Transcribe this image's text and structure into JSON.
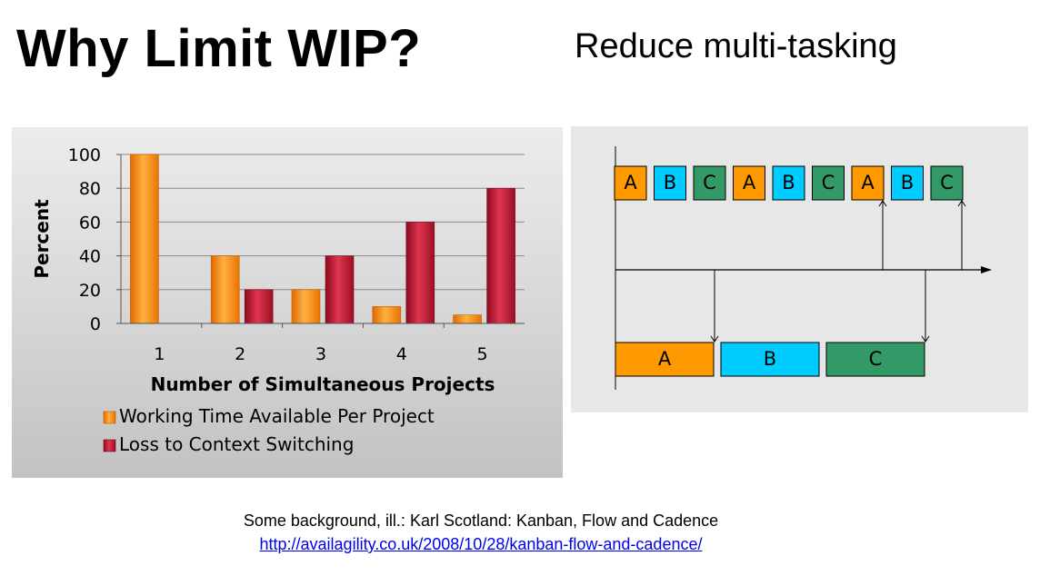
{
  "slide": {
    "title": "Why Limit WIP?",
    "subtitle": "Reduce multi-tasking",
    "footer_text": "Some background, ill.: Karl Scotland: Kanban, Flow and Cadence",
    "footer_link": "http://availagility.co.uk/2008/10/28/kanban-flow-and-cadence/"
  },
  "chart_data": {
    "type": "bar",
    "categories": [
      "1",
      "2",
      "3",
      "4",
      "5"
    ],
    "series": [
      {
        "name": "Working Time Available Per Project",
        "values": [
          100,
          40,
          20,
          10,
          5
        ],
        "color": "#f38b10"
      },
      {
        "name": "Loss to Context Switching",
        "values": [
          0,
          20,
          40,
          60,
          80
        ],
        "color": "#b8152e"
      }
    ],
    "xlabel": "Number of Simultaneous Projects",
    "ylabel": "Percent",
    "ylim": [
      0,
      100
    ],
    "yticks": [
      0,
      20,
      40,
      60,
      80,
      100
    ],
    "grid": true,
    "legend": "bottom"
  },
  "diagram": {
    "top_sequence": [
      {
        "label": "A",
        "color": "#ff9900"
      },
      {
        "label": "B",
        "color": "#00ccff"
      },
      {
        "label": "C",
        "color": "#339966"
      },
      {
        "label": "A",
        "color": "#ff9900"
      },
      {
        "label": "B",
        "color": "#00ccff"
      },
      {
        "label": "C",
        "color": "#339966"
      },
      {
        "label": "A",
        "color": "#ff9900"
      },
      {
        "label": "B",
        "color": "#00ccff"
      },
      {
        "label": "C",
        "color": "#339966"
      }
    ],
    "bottom_sequence": [
      {
        "label": "A",
        "color": "#ff9900"
      },
      {
        "label": "B",
        "color": "#00ccff"
      },
      {
        "label": "C",
        "color": "#339966"
      }
    ]
  }
}
